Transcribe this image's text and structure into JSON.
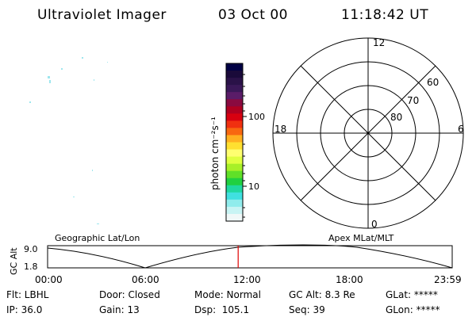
{
  "header": {
    "title": "Ultraviolet Imager",
    "date": "03 Oct 00",
    "time": "11:18:42 UT"
  },
  "colorbar": {
    "unit_label": "photon cm⁻²s⁻¹",
    "ticks": [
      {
        "label": "100",
        "value": 100
      },
      {
        "label": "10",
        "value": 10
      }
    ],
    "colors": [
      "#000044",
      "#1a0a3a",
      "#2a1248",
      "#3a1858",
      "#5a1c68",
      "#8a0a40",
      "#b00020",
      "#d80010",
      "#f03010",
      "#f86810",
      "#ffb020",
      "#ffe030",
      "#ffff70",
      "#e0ff40",
      "#a8f028",
      "#60e028",
      "#20d040",
      "#20d8a0",
      "#40e0e0",
      "#90ecec",
      "#c8f4f4",
      "#f0f8f8"
    ],
    "scale": "log"
  },
  "polar": {
    "labels": {
      "top": "12",
      "bottom": "0",
      "left": "18",
      "right": "6",
      "ring_60": "60",
      "ring_70": "70",
      "ring_80": "80"
    }
  },
  "timeline": {
    "left_label": "Geographic Lat/Lon",
    "right_label": "Apex MLat/MLT",
    "y_axis_label": "GC Alt",
    "y_max": "9.0",
    "y_min": "1.8",
    "x_ticks": [
      "00:00",
      "06:00",
      "12:00",
      "18:00",
      "23:59"
    ],
    "current_time_fraction": 0.471
  },
  "footer": {
    "row1": {
      "filter": "Flt: LBHL",
      "door": "Door: Closed",
      "mode": "Mode: Normal",
      "gc_alt": "GC Alt: 8.3 Re",
      "glat": "GLat: *****"
    },
    "row2": {
      "ip": "IP: 36.0",
      "gain": "Gain: 13",
      "dsp": "Dsp:  105.1",
      "seq": "Seq: 39",
      "glon": "GLon: *****"
    }
  }
}
